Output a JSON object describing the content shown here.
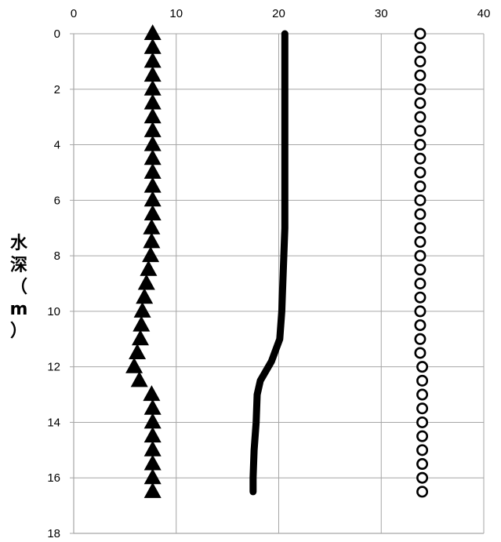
{
  "chart_data": {
    "type": "line",
    "title": "",
    "xlabel": "",
    "ylabel": "水深（m）",
    "xlim": [
      0,
      40
    ],
    "ylim": [
      18,
      0
    ],
    "y_inverted": true,
    "x_axis_position": "top",
    "x_ticks": [
      "0",
      "10",
      "20",
      "30",
      "40"
    ],
    "y_ticks": [
      "0",
      "2",
      "4",
      "6",
      "8",
      "10",
      "12",
      "14",
      "16",
      "18"
    ],
    "grid": {
      "vertical": true,
      "horizontal": true
    },
    "legend": "none",
    "series": [
      {
        "marker": "triangle",
        "line": false,
        "color": "#000000",
        "points": [
          [
            7.7,
            0
          ],
          [
            7.7,
            0.5
          ],
          [
            7.7,
            1
          ],
          [
            7.7,
            1.5
          ],
          [
            7.7,
            2
          ],
          [
            7.7,
            2.5
          ],
          [
            7.7,
            3
          ],
          [
            7.7,
            3.5
          ],
          [
            7.7,
            4
          ],
          [
            7.7,
            4.5
          ],
          [
            7.7,
            5
          ],
          [
            7.7,
            5.5
          ],
          [
            7.7,
            6
          ],
          [
            7.7,
            6.5
          ],
          [
            7.6,
            7
          ],
          [
            7.6,
            7.5
          ],
          [
            7.5,
            8
          ],
          [
            7.3,
            8.5
          ],
          [
            7.1,
            9
          ],
          [
            6.9,
            9.5
          ],
          [
            6.7,
            10
          ],
          [
            6.6,
            10.5
          ],
          [
            6.5,
            11
          ],
          [
            6.2,
            11.5
          ],
          [
            5.9,
            12
          ],
          [
            6.4,
            12.5
          ],
          [
            7.6,
            13
          ],
          [
            7.7,
            13.5
          ],
          [
            7.7,
            14
          ],
          [
            7.7,
            14.5
          ],
          [
            7.7,
            15
          ],
          [
            7.7,
            15.5
          ],
          [
            7.7,
            16
          ],
          [
            7.7,
            16.5
          ]
        ]
      },
      {
        "marker": "none",
        "line": true,
        "line_width": "thick",
        "color": "#000000",
        "points": [
          [
            20.6,
            0
          ],
          [
            20.6,
            1
          ],
          [
            20.6,
            2
          ],
          [
            20.6,
            3
          ],
          [
            20.6,
            4
          ],
          [
            20.6,
            5
          ],
          [
            20.6,
            6
          ],
          [
            20.6,
            7
          ],
          [
            20.5,
            8
          ],
          [
            20.4,
            9
          ],
          [
            20.3,
            10
          ],
          [
            20.1,
            11
          ],
          [
            19.3,
            11.8
          ],
          [
            18.2,
            12.5
          ],
          [
            17.9,
            13
          ],
          [
            17.8,
            14
          ],
          [
            17.6,
            15
          ],
          [
            17.5,
            16
          ],
          [
            17.5,
            16.5
          ]
        ]
      },
      {
        "marker": "circle-open",
        "line": false,
        "color": "#000000",
        "points": [
          [
            33.8,
            0
          ],
          [
            33.8,
            0.5
          ],
          [
            33.8,
            1
          ],
          [
            33.8,
            1.5
          ],
          [
            33.8,
            2
          ],
          [
            33.8,
            2.5
          ],
          [
            33.8,
            3
          ],
          [
            33.8,
            3.5
          ],
          [
            33.8,
            4
          ],
          [
            33.8,
            4.5
          ],
          [
            33.8,
            5
          ],
          [
            33.8,
            5.5
          ],
          [
            33.8,
            6
          ],
          [
            33.8,
            6.5
          ],
          [
            33.8,
            7
          ],
          [
            33.8,
            7.5
          ],
          [
            33.8,
            8
          ],
          [
            33.8,
            8.5
          ],
          [
            33.8,
            9
          ],
          [
            33.8,
            9.5
          ],
          [
            33.8,
            10
          ],
          [
            33.8,
            10.5
          ],
          [
            33.8,
            11
          ],
          [
            33.8,
            11.5
          ],
          [
            34.0,
            12
          ],
          [
            34.0,
            12.5
          ],
          [
            34.0,
            13
          ],
          [
            34.0,
            13.5
          ],
          [
            34.0,
            14
          ],
          [
            34.0,
            14.5
          ],
          [
            34.0,
            15
          ],
          [
            34.0,
            15.5
          ],
          [
            34.0,
            16
          ],
          [
            34.0,
            16.5
          ]
        ]
      }
    ]
  }
}
